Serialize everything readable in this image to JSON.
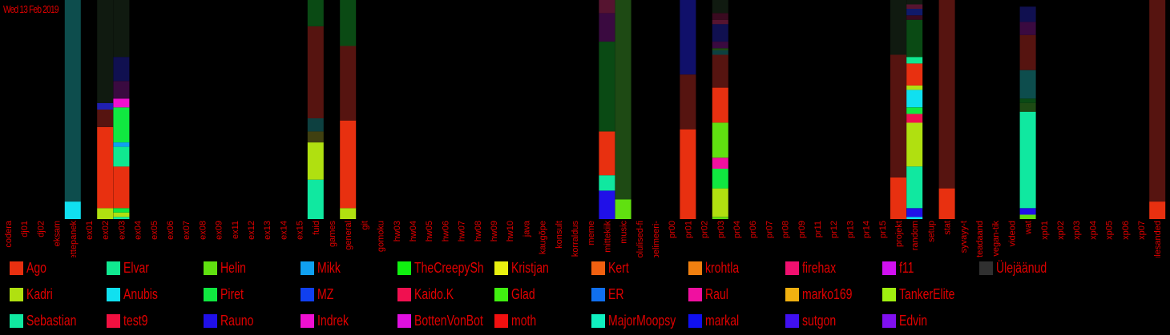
{
  "date_label": "Wed 13 Feb 2019",
  "chart_data": {
    "type": "bar",
    "stacked": true,
    "categories": [
      "codera",
      "dj01",
      "dj02",
      "eksam",
      "ettepanek",
      "ex01",
      "ex02",
      "ex03",
      "ex04",
      "ex05",
      "ex06",
      "ex07",
      "ex08",
      "ex09",
      "ex11",
      "ex12",
      "ex13",
      "ex14",
      "ex15",
      "fuid",
      "games",
      "general",
      "git",
      "gomoku",
      "hw03",
      "hw04",
      "hw05",
      "hw06",
      "hw07",
      "hw08",
      "hw09",
      "hw10",
      "java",
      "kaugõpe",
      "konsult",
      "korraldus",
      "meme",
      "mittekiik",
      "music",
      "olulised-fi",
      "pelimeeri-",
      "pr00",
      "pr01",
      "pr02",
      "pr03",
      "pr04",
      "pr06",
      "pr07",
      "pr08",
      "pr09",
      "pr11",
      "pr12",
      "pr13",
      "pr14",
      "pr15",
      "projekt",
      "random",
      "setup",
      "stat",
      "syvayy-t",
      "teadaand",
      "vegan-tik",
      "videod",
      "wat",
      "xp01",
      "xp02",
      "xp03",
      "xp04",
      "xp05",
      "xp06",
      "xp07",
      "ülesanded"
    ],
    "ylim": [
      0,
      100
    ],
    "series": [
      {
        "name": "Ago",
        "color": "#e83010"
      },
      {
        "name": "Kadri",
        "color": "#b0e010"
      },
      {
        "name": "Sebastian",
        "color": "#10e8a0"
      },
      {
        "name": "Elvar",
        "color": "#10e890"
      },
      {
        "name": "Anubis",
        "color": "#10e0f0"
      },
      {
        "name": "test9",
        "color": "#f01040"
      },
      {
        "name": "Helin",
        "color": "#60e010"
      },
      {
        "name": "Piret",
        "color": "#10e840"
      },
      {
        "name": "Rauno",
        "color": "#2010e8"
      },
      {
        "name": "Mikk",
        "color": "#10a0f0"
      },
      {
        "name": "MZ",
        "color": "#1040f0"
      },
      {
        "name": "Indrek",
        "color": "#f010d0"
      },
      {
        "name": "TheCreepySh",
        "color": "#10f010"
      },
      {
        "name": "Kaido.K",
        "color": "#f01050"
      },
      {
        "name": "BottenVonBot",
        "color": "#e010e0"
      },
      {
        "name": "Kristjan",
        "color": "#e8f010"
      },
      {
        "name": "Glad",
        "color": "#40f010"
      },
      {
        "name": "moth",
        "color": "#f01010"
      },
      {
        "name": "Kert",
        "color": "#f06010"
      },
      {
        "name": "ER",
        "color": "#1070f0"
      },
      {
        "name": "MajorMoopsy",
        "color": "#10f0c0"
      },
      {
        "name": "krohtla",
        "color": "#f08010"
      },
      {
        "name": "Raul",
        "color": "#f010a0"
      },
      {
        "name": "markal",
        "color": "#1010f0"
      },
      {
        "name": "firehax",
        "color": "#f01070"
      },
      {
        "name": "marko169",
        "color": "#f0b010"
      },
      {
        "name": "sutgon",
        "color": "#4010f0"
      },
      {
        "name": "f11",
        "color": "#d010f0"
      },
      {
        "name": "TankerElite",
        "color": "#a0f010"
      },
      {
        "name": "Edvin",
        "color": "#8010f0"
      },
      {
        "name": "Ülejäänud",
        "color": "#303030"
      }
    ],
    "stacks": {
      "ettepanek": [
        {
          "h": 8,
          "c": "#10e0f0"
        },
        {
          "h": 92,
          "c": "#0d4d4d"
        }
      ],
      "ex02": [
        {
          "h": 5,
          "c": "#b0e010"
        },
        {
          "h": 37,
          "c": "#e83010"
        },
        {
          "h": 8,
          "c": "#561410"
        },
        {
          "h": 3,
          "c": "#2020b0"
        },
        {
          "h": 47,
          "c": "#101a10"
        }
      ],
      "ex03": [
        {
          "h": 1,
          "c": "#10e8a0"
        },
        {
          "h": 2,
          "c": "#b0e010"
        },
        {
          "h": 2,
          "c": "#10e840"
        },
        {
          "h": 19,
          "c": "#e83010"
        },
        {
          "h": 9,
          "c": "#10e890"
        },
        {
          "h": 2,
          "c": "#10a0f0"
        },
        {
          "h": 16,
          "c": "#10e840"
        },
        {
          "h": 4,
          "c": "#f010d0"
        },
        {
          "h": 8,
          "c": "#3a0a40"
        },
        {
          "h": 11,
          "c": "#101050"
        },
        {
          "h": 26,
          "c": "#101a10"
        }
      ],
      "fuid": [
        {
          "h": 18,
          "c": "#10e8a0"
        },
        {
          "h": 17,
          "c": "#b0e010"
        },
        {
          "h": 5,
          "c": "#404010"
        },
        {
          "h": 6,
          "c": "#0d4040"
        },
        {
          "h": 42,
          "c": "#561410"
        },
        {
          "h": 12,
          "c": "#0a4a14"
        }
      ],
      "general": [
        {
          "h": 5,
          "c": "#b0e010"
        },
        {
          "h": 40,
          "c": "#e83010"
        },
        {
          "h": 34,
          "c": "#561410"
        },
        {
          "h": 21,
          "c": "#0a4a14"
        }
      ],
      "mittekiik": [
        {
          "h": 13,
          "c": "#2010e8"
        },
        {
          "h": 7,
          "c": "#10e8a0"
        },
        {
          "h": 20,
          "c": "#e83010"
        },
        {
          "h": 41,
          "c": "#0a4a14"
        },
        {
          "h": 13,
          "c": "#3a0a40"
        },
        {
          "h": 6,
          "c": "#561430"
        }
      ],
      "music": [
        {
          "h": 9,
          "c": "#60e010"
        },
        {
          "h": 91,
          "c": "#1e4a14"
        }
      ],
      "pr01": [
        {
          "h": 41,
          "c": "#e83010"
        },
        {
          "h": 25,
          "c": "#561410"
        },
        {
          "h": 34,
          "c": "#10106a"
        }
      ],
      "pr03": [
        {
          "h": 1,
          "c": "#60e010"
        },
        {
          "h": 1,
          "c": "#b0e010"
        },
        {
          "h": 12,
          "c": "#b0e010"
        },
        {
          "h": 9,
          "c": "#10e840"
        },
        {
          "h": 5,
          "c": "#f010a0"
        },
        {
          "h": 16,
          "c": "#60e010"
        },
        {
          "h": 16,
          "c": "#e83010"
        },
        {
          "h": 15,
          "c": "#561410"
        },
        {
          "h": 2,
          "c": "#0d4040"
        },
        {
          "h": 1,
          "c": "#1e4a14"
        },
        {
          "h": 3,
          "c": "#3a0a40"
        },
        {
          "h": 8,
          "c": "#101050"
        },
        {
          "h": 2,
          "c": "#561430"
        },
        {
          "h": 3,
          "c": "#3a0a20"
        },
        {
          "h": 6,
          "c": "#101a10"
        }
      ],
      "projekt": [
        {
          "h": 19,
          "c": "#e83010"
        },
        {
          "h": 56,
          "c": "#561410"
        },
        {
          "h": 25,
          "c": "#101a10"
        }
      ],
      "random": [
        {
          "h": 1,
          "c": "#10e0f0"
        },
        {
          "h": 4,
          "c": "#2010e8"
        },
        {
          "h": 19,
          "c": "#10e8a0"
        },
        {
          "h": 20,
          "c": "#b0e010"
        },
        {
          "h": 4,
          "c": "#f01050"
        },
        {
          "h": 3,
          "c": "#10e840"
        },
        {
          "h": 8,
          "c": "#10e0f0"
        },
        {
          "h": 2,
          "c": "#b0e010"
        },
        {
          "h": 10,
          "c": "#e83010"
        },
        {
          "h": 3,
          "c": "#10e890"
        },
        {
          "h": 17,
          "c": "#0a4a14"
        },
        {
          "h": 2,
          "c": "#3a0a20"
        },
        {
          "h": 3,
          "c": "#101a6a"
        },
        {
          "h": 2,
          "c": "#561430"
        },
        {
          "h": 2,
          "c": "#101a10"
        }
      ],
      "stat": [
        {
          "h": 14,
          "c": "#e83010"
        },
        {
          "h": 86,
          "c": "#561410"
        }
      ],
      "wat": [
        {
          "h": 2,
          "c": "#60e010"
        },
        {
          "h": 3,
          "c": "#2010e8"
        },
        {
          "h": 44,
          "c": "#10e8a0"
        },
        {
          "h": 4,
          "c": "#1e4a14"
        },
        {
          "h": 2,
          "c": "#0a4a14"
        },
        {
          "h": 13,
          "c": "#0d4d4d"
        },
        {
          "h": 16,
          "c": "#561410"
        },
        {
          "h": 6,
          "c": "#3a0a40"
        },
        {
          "h": 7,
          "c": "#101050"
        },
        {
          "h": 3,
          "c": "#000000"
        }
      ],
      "ülesanded": [
        {
          "h": 8,
          "c": "#e83010"
        },
        {
          "h": 92,
          "c": "#561410"
        }
      ]
    }
  }
}
